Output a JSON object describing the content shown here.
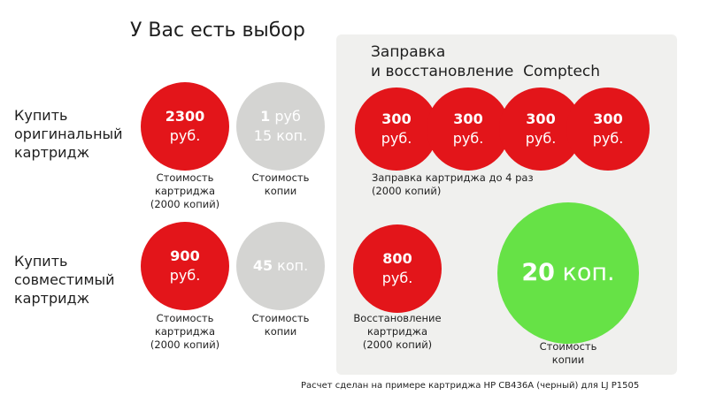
{
  "title": "У Вас есть выбор",
  "panel": {
    "title_line1": "Заправка",
    "title_line2": "и восстановление  Comptech"
  },
  "rows": {
    "original": {
      "label": [
        "Купить",
        "оригинальный",
        "картридж"
      ],
      "cartridge": {
        "amount": "2300",
        "unit": "руб.",
        "caption": [
          "Стоимость",
          "картриджа",
          "(2000 копий)"
        ]
      },
      "copy": {
        "amount": "1",
        "unit": "руб",
        "line2": "15 коп.",
        "caption": [
          "Стоимость",
          "копии"
        ]
      }
    },
    "compatible": {
      "label": [
        "Купить",
        "совместимый",
        "картридж"
      ],
      "cartridge": {
        "amount": "900",
        "unit": "руб.",
        "caption": [
          "Стоимость",
          "картриджа",
          "(2000 копий)"
        ]
      },
      "copy": {
        "amount": "45",
        "unit": "коп.",
        "caption": [
          "Стоимость",
          "копии"
        ]
      }
    }
  },
  "refill": {
    "circles": [
      {
        "amount": "300",
        "unit": "руб."
      },
      {
        "amount": "300",
        "unit": "руб."
      },
      {
        "amount": "300",
        "unit": "руб."
      },
      {
        "amount": "300",
        "unit": "руб."
      }
    ],
    "caption": [
      "Заправка картриджа до 4 раз",
      "(2000 копий)"
    ]
  },
  "restore": {
    "amount": "800",
    "unit": "руб.",
    "caption": [
      "Восстановление",
      "картриджа",
      "(2000 копий)"
    ]
  },
  "result": {
    "amount": "20",
    "unit": "коп.",
    "caption": [
      "Стоимость",
      "копии"
    ]
  },
  "footnote": "Расчет сделан на примере картриджа HP CB436A (черный) для LJ P1505",
  "colors": {
    "red": "#e3151a",
    "gray": "#d4d4d2",
    "green": "#66e246",
    "panel": "#f0f0ee"
  }
}
